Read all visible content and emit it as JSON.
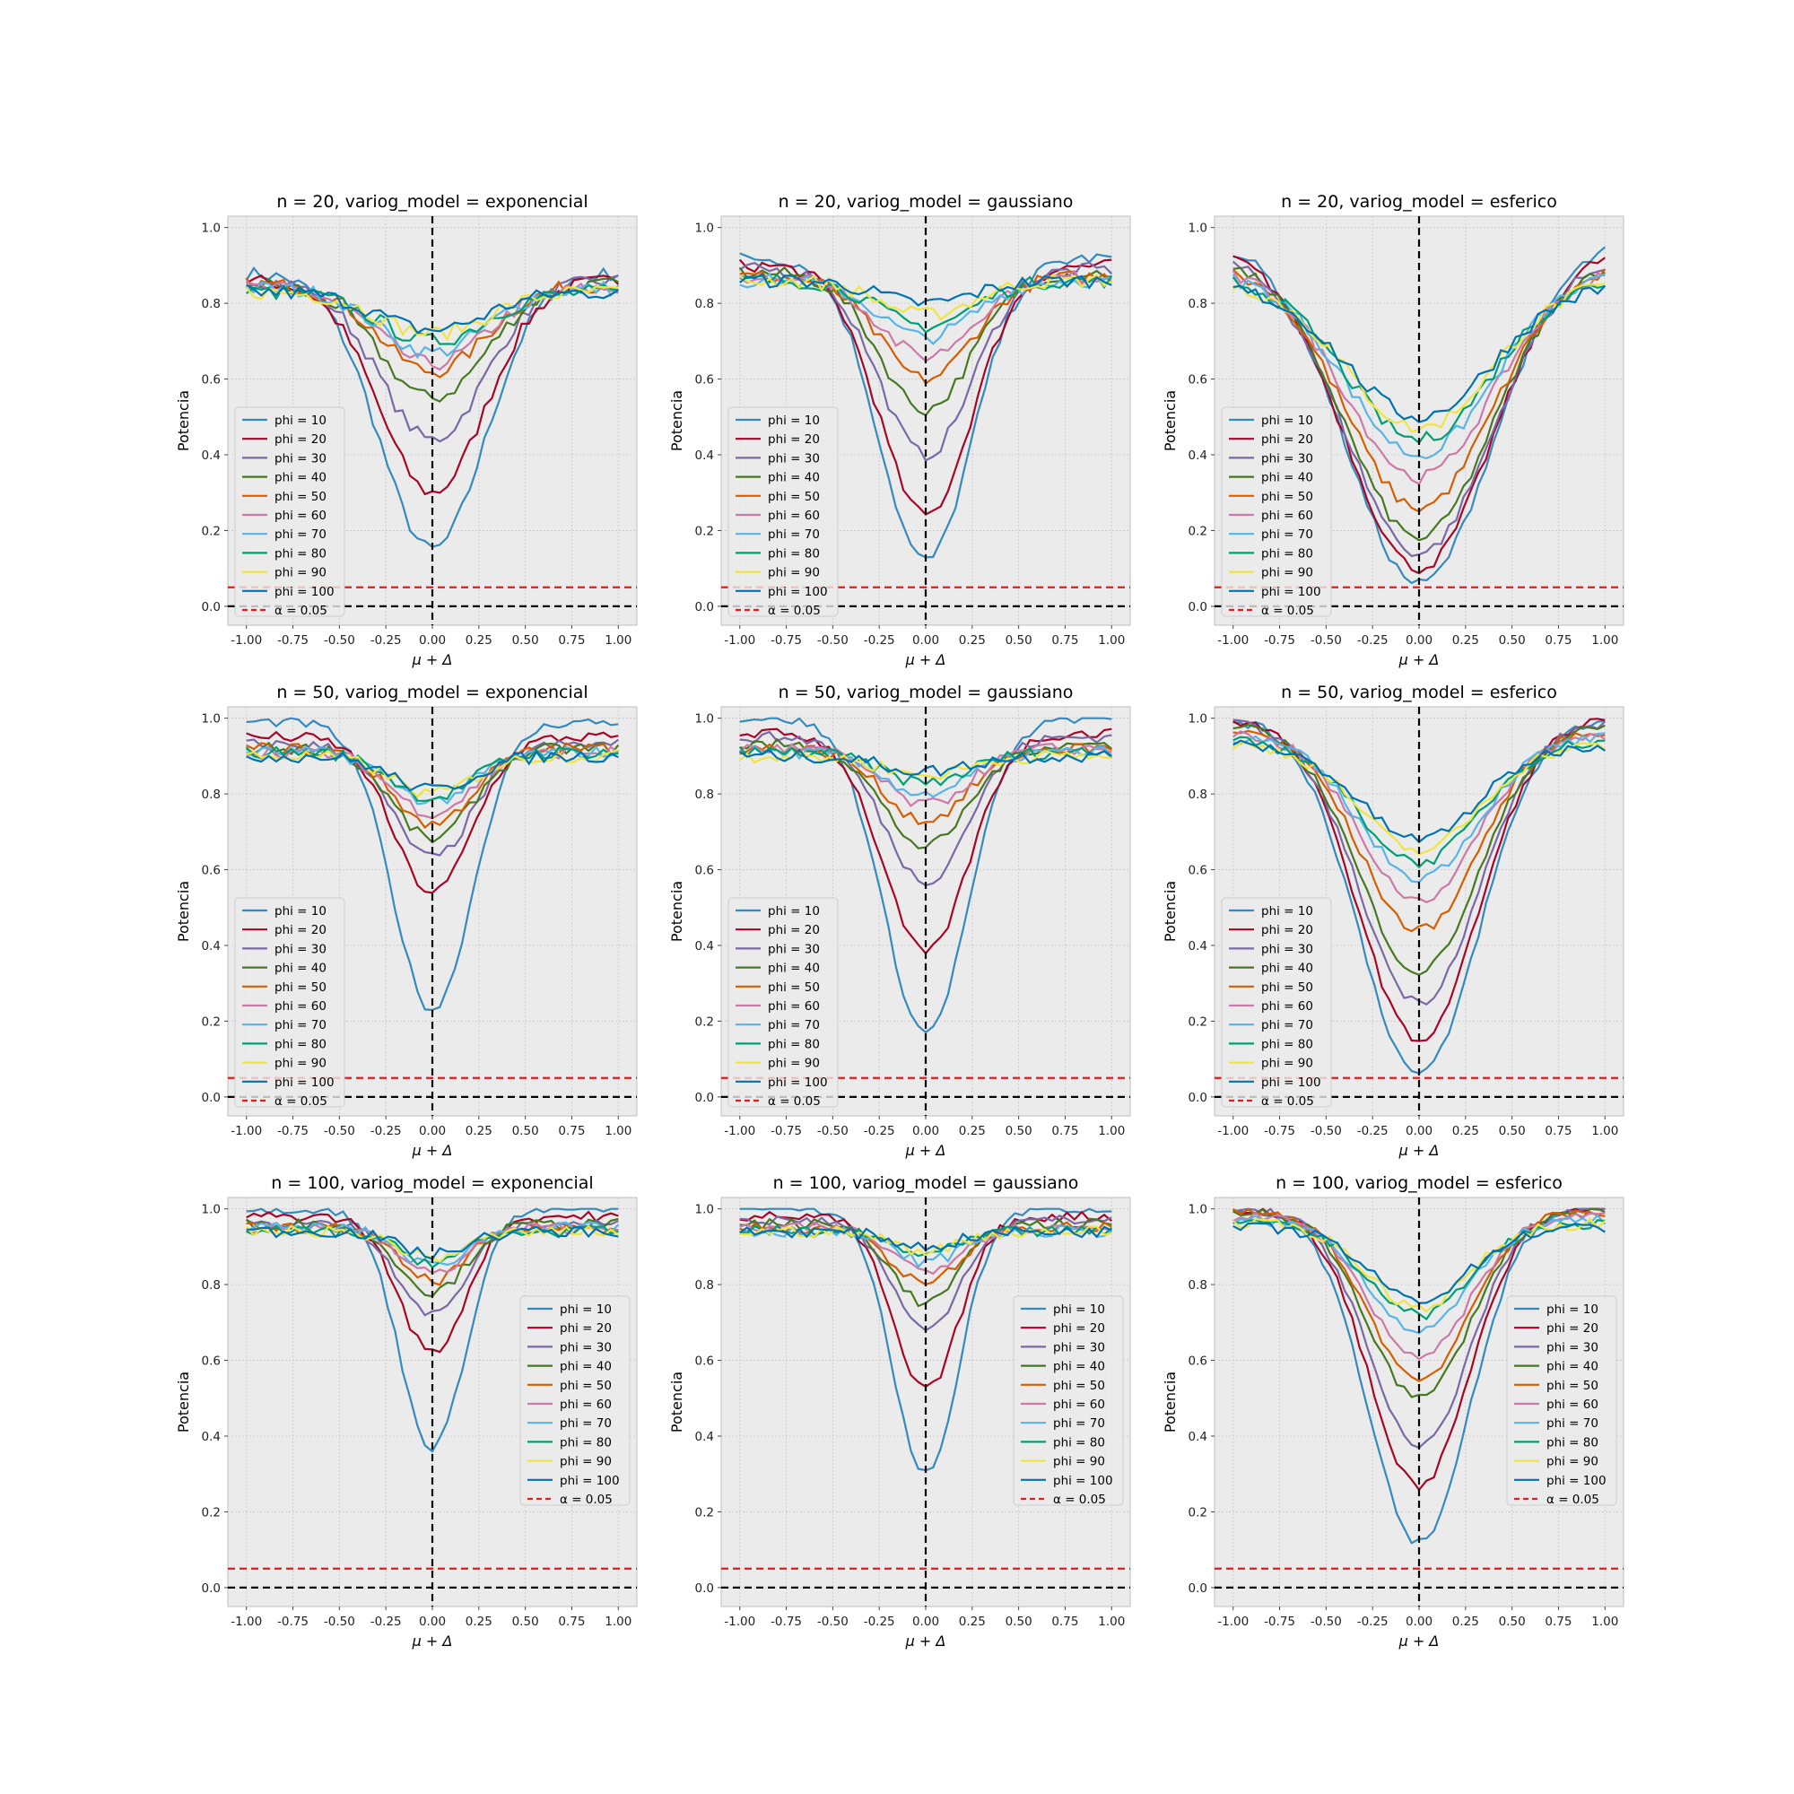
{
  "chart_data": {
    "type": "line",
    "xlabel": "μ + Δ",
    "ylabel": "Potencia",
    "xlim": [
      -1.1,
      1.1
    ],
    "ylim": [
      -0.05,
      1.03
    ],
    "xticks": [
      "-1.00",
      "-0.75",
      "-0.50",
      "-0.25",
      "0.00",
      "0.25",
      "0.50",
      "0.75",
      "1.00"
    ],
    "yticks": [
      "0.0",
      "0.2",
      "0.4",
      "0.6",
      "0.8",
      "1.0"
    ],
    "grid": true,
    "reference_lines": [
      {
        "name": "α = 0.05",
        "axis": "y",
        "value": 0.05,
        "color": "#e41a1c",
        "style": "dashed"
      },
      {
        "name": "",
        "axis": "y",
        "value": 0.0,
        "color": "#000000",
        "style": "dashed"
      },
      {
        "name": "",
        "axis": "x",
        "value": 0.0,
        "color": "#000000",
        "style": "dashed"
      }
    ],
    "series_colors": [
      "#348abd",
      "#a60628",
      "#7a68a6",
      "#467821",
      "#d55e00",
      "#cc79a7",
      "#56b4e9",
      "#009e73",
      "#f0e442",
      "#0072b2"
    ],
    "legend_labels": [
      "phi = 10",
      "phi = 20",
      "phi = 30",
      "phi = 40",
      "phi = 50",
      "phi = 60",
      "phi = 70",
      "phi = 80",
      "phi = 90",
      "phi = 100",
      "α = 0.05"
    ],
    "panels": [
      {
        "title": "n = 20, variog_model = exponencial",
        "n": 20,
        "model": "exponencial",
        "legend_position": "lower-left",
        "ends": [
          0.88,
          0.86,
          0.86,
          0.85,
          0.85,
          0.84,
          0.84,
          0.83,
          0.83,
          0.83
        ],
        "mins": [
          0.15,
          0.3,
          0.44,
          0.55,
          0.62,
          0.64,
          0.67,
          0.7,
          0.72,
          0.73
        ],
        "widths": [
          0.4,
          0.4,
          0.4,
          0.4,
          0.4,
          0.4,
          0.4,
          0.4,
          0.4,
          0.4
        ]
      },
      {
        "title": "n = 20, variog_model = gaussiano",
        "n": 20,
        "model": "gaussiano",
        "legend_position": "lower-left",
        "ends": [
          0.92,
          0.9,
          0.89,
          0.88,
          0.87,
          0.87,
          0.86,
          0.86,
          0.86,
          0.86
        ],
        "mins": [
          0.12,
          0.24,
          0.4,
          0.52,
          0.6,
          0.66,
          0.71,
          0.74,
          0.77,
          0.8
        ],
        "widths": [
          0.35,
          0.35,
          0.35,
          0.35,
          0.35,
          0.35,
          0.35,
          0.35,
          0.35,
          0.35
        ]
      },
      {
        "title": "n = 20, variog_model = esferico",
        "n": 20,
        "model": "esferico",
        "legend_position": "lower-left",
        "ends": [
          0.97,
          0.95,
          0.93,
          0.92,
          0.9,
          0.89,
          0.88,
          0.87,
          0.86,
          0.85
        ],
        "mins": [
          0.06,
          0.1,
          0.14,
          0.18,
          0.26,
          0.34,
          0.4,
          0.44,
          0.47,
          0.5
        ],
        "widths": [
          0.55,
          0.55,
          0.55,
          0.55,
          0.55,
          0.55,
          0.55,
          0.55,
          0.55,
          0.55
        ]
      },
      {
        "title": "n = 50, variog_model = exponencial",
        "n": 50,
        "model": "exponencial",
        "legend_position": "lower-left",
        "ends": [
          0.99,
          0.95,
          0.93,
          0.92,
          0.92,
          0.91,
          0.91,
          0.91,
          0.9,
          0.9
        ],
        "mins": [
          0.23,
          0.54,
          0.63,
          0.68,
          0.72,
          0.75,
          0.78,
          0.79,
          0.8,
          0.81
        ],
        "widths": [
          0.3,
          0.3,
          0.3,
          0.3,
          0.3,
          0.3,
          0.3,
          0.3,
          0.3,
          0.3
        ]
      },
      {
        "title": "n = 50, variog_model = gaussiano",
        "n": 50,
        "model": "gaussiano",
        "legend_position": "lower-left",
        "ends": [
          1.0,
          0.96,
          0.95,
          0.93,
          0.92,
          0.92,
          0.91,
          0.91,
          0.9,
          0.9
        ],
        "mins": [
          0.17,
          0.38,
          0.57,
          0.66,
          0.73,
          0.77,
          0.8,
          0.83,
          0.85,
          0.86
        ],
        "widths": [
          0.32,
          0.32,
          0.32,
          0.32,
          0.32,
          0.32,
          0.32,
          0.32,
          0.32,
          0.32
        ]
      },
      {
        "title": "n = 50, variog_model = esferico",
        "n": 50,
        "model": "esferico",
        "legend_position": "lower-left",
        "ends": [
          1.0,
          1.0,
          0.99,
          0.98,
          0.97,
          0.96,
          0.95,
          0.94,
          0.93,
          0.93
        ],
        "mins": [
          0.06,
          0.15,
          0.25,
          0.33,
          0.44,
          0.52,
          0.58,
          0.62,
          0.65,
          0.68
        ],
        "widths": [
          0.45,
          0.45,
          0.45,
          0.45,
          0.45,
          0.45,
          0.45,
          0.45,
          0.45,
          0.45
        ]
      },
      {
        "title": "n = 100, variog_model = exponencial",
        "n": 100,
        "model": "exponencial",
        "legend_position": "center-right",
        "ends": [
          1.0,
          0.98,
          0.96,
          0.96,
          0.95,
          0.95,
          0.95,
          0.94,
          0.94,
          0.94
        ],
        "mins": [
          0.37,
          0.62,
          0.72,
          0.78,
          0.81,
          0.83,
          0.85,
          0.86,
          0.87,
          0.88
        ],
        "widths": [
          0.25,
          0.25,
          0.25,
          0.25,
          0.25,
          0.25,
          0.25,
          0.25,
          0.25,
          0.25
        ]
      },
      {
        "title": "n = 100, variog_model = gaussiano",
        "n": 100,
        "model": "gaussiano",
        "legend_position": "center-right",
        "ends": [
          1.0,
          0.98,
          0.97,
          0.96,
          0.95,
          0.95,
          0.94,
          0.94,
          0.94,
          0.94
        ],
        "mins": [
          0.3,
          0.52,
          0.68,
          0.75,
          0.8,
          0.84,
          0.86,
          0.88,
          0.89,
          0.9
        ],
        "widths": [
          0.25,
          0.25,
          0.25,
          0.25,
          0.25,
          0.25,
          0.25,
          0.25,
          0.25,
          0.25
        ]
      },
      {
        "title": "n = 100, variog_model = esferico",
        "n": 100,
        "model": "esferico",
        "legend_position": "center-right",
        "ends": [
          1.0,
          1.0,
          1.0,
          0.99,
          0.99,
          0.98,
          0.97,
          0.96,
          0.96,
          0.95
        ],
        "mins": [
          0.12,
          0.27,
          0.37,
          0.5,
          0.55,
          0.61,
          0.68,
          0.72,
          0.74,
          0.76
        ],
        "widths": [
          0.38,
          0.38,
          0.38,
          0.38,
          0.38,
          0.38,
          0.38,
          0.38,
          0.38,
          0.38
        ]
      }
    ]
  }
}
